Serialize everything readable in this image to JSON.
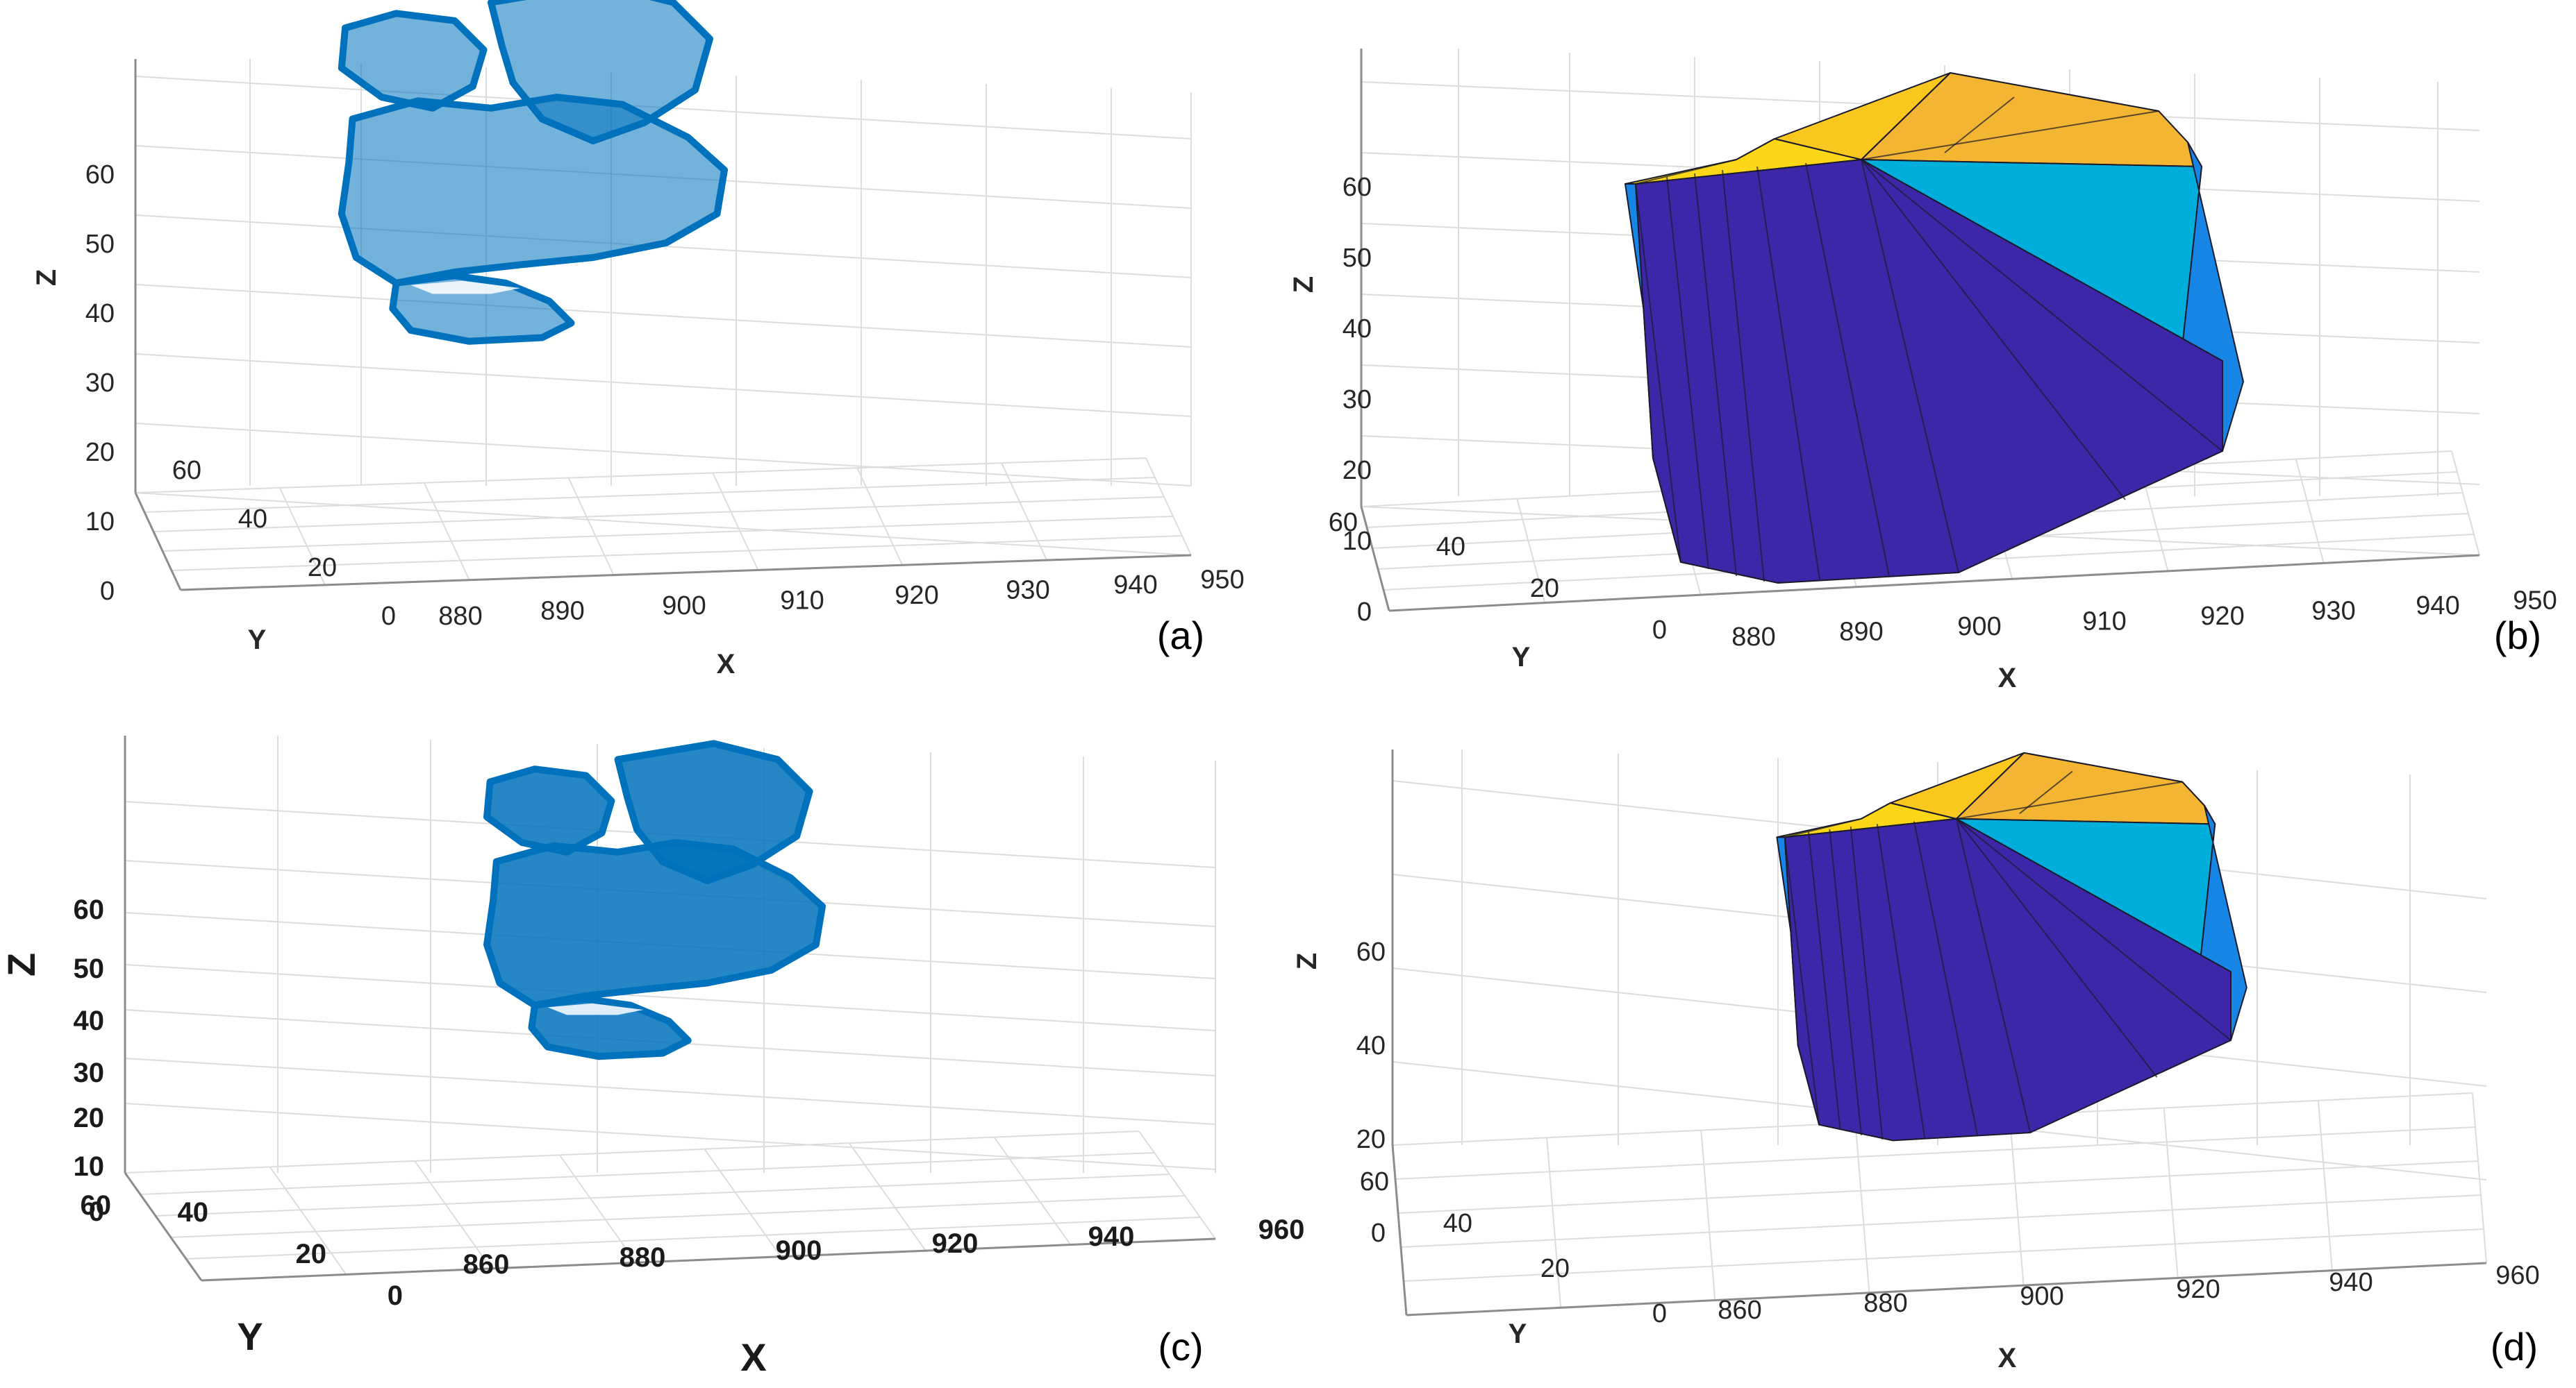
{
  "chart_data": [
    {
      "type": "scatter",
      "subplot_label": "(a)",
      "xlabel": "X",
      "ylabel": "Y",
      "zlabel": "Z",
      "x_ticks": [
        "880",
        "890",
        "900",
        "910",
        "920",
        "930",
        "940",
        "950"
      ],
      "y_ticks": [
        "0",
        "20",
        "40",
        "60"
      ],
      "z_ticks": [
        "0",
        "10",
        "20",
        "30",
        "40",
        "50",
        "60"
      ],
      "xlim": [
        878,
        950
      ],
      "ylim": [
        0,
        60
      ],
      "zlim": [
        0,
        60
      ],
      "grid": true,
      "marker_color": "#0072BD"
    },
    {
      "type": "other",
      "subplot_label": "(b)",
      "xlabel": "X",
      "ylabel": "Y",
      "zlabel": "Z",
      "x_ticks": [
        "880",
        "890",
        "900",
        "910",
        "920",
        "930",
        "940",
        "950"
      ],
      "y_ticks": [
        "0",
        "20",
        "40",
        "60"
      ],
      "z_ticks": [
        "0",
        "10",
        "20",
        "30",
        "40",
        "50",
        "60"
      ],
      "xlim": [
        878,
        950
      ],
      "ylim": [
        0,
        60
      ],
      "zlim": [
        0,
        60
      ],
      "grid": true,
      "face_colors": [
        "#3E26A8",
        "#00AEDC",
        "#1785E6",
        "#F9C71E",
        "#FCD718",
        "#F4B632"
      ]
    },
    {
      "type": "scatter",
      "subplot_label": "(c)",
      "xlabel": "X",
      "ylabel": "Y",
      "zlabel": "Z",
      "x_ticks": [
        "860",
        "880",
        "900",
        "920",
        "940",
        "960"
      ],
      "y_ticks": [
        "0",
        "20",
        "40",
        "60"
      ],
      "z_ticks": [
        "0",
        "10",
        "20",
        "30",
        "40",
        "50",
        "60"
      ],
      "xlim": [
        860,
        960
      ],
      "ylim": [
        0,
        60
      ],
      "zlim": [
        -20,
        60
      ],
      "grid": true,
      "marker_color": "#0072BD",
      "bounding_box_color": "#FF8080"
    },
    {
      "type": "other",
      "subplot_label": "(d)",
      "xlabel": "X",
      "ylabel": "Y",
      "zlabel": "Z",
      "x_ticks": [
        "860",
        "880",
        "900",
        "920",
        "940",
        "960"
      ],
      "y_ticks": [
        "0",
        "20",
        "40",
        "60"
      ],
      "z_ticks": [
        "0",
        "20",
        "40",
        "60"
      ],
      "xlim": [
        860,
        960
      ],
      "ylim": [
        0,
        60
      ],
      "zlim": [
        -20,
        60
      ],
      "grid": true,
      "face_colors": [
        "#3E26A8",
        "#00AEDC",
        "#1785E6",
        "#F9C71E",
        "#FCD718",
        "#F4B632"
      ],
      "bounding_box_color": "#FF8080"
    }
  ]
}
